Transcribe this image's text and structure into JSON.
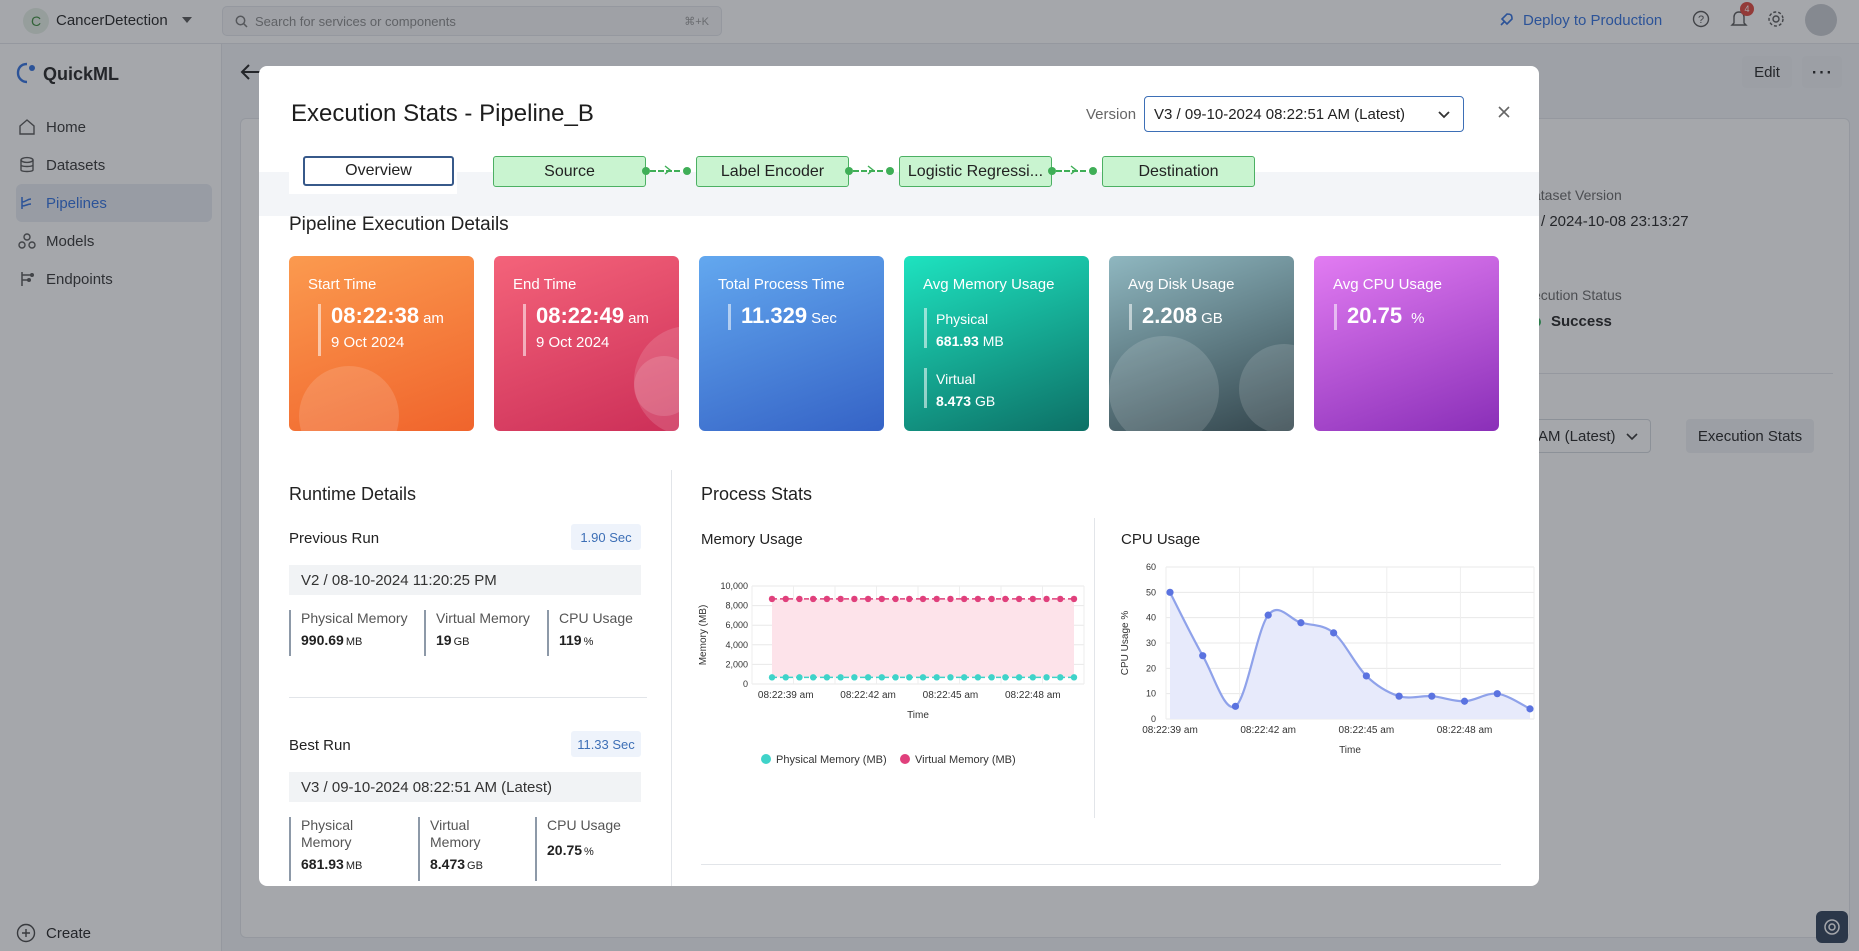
{
  "topbar": {
    "project_initial": "C",
    "project_name": "CancerDetection",
    "search_placeholder": "Search for services or components",
    "search_shortcut": "⌘+K",
    "deploy_label": "Deploy to Production",
    "notification_count": "4",
    "colors": {
      "accent": "#2f6fde",
      "badge": "#e0443a"
    }
  },
  "sidebar": {
    "brand": "QuickML",
    "items": [
      {
        "label": "Home",
        "icon": "home-icon"
      },
      {
        "label": "Datasets",
        "icon": "database-icon"
      },
      {
        "label": "Pipelines",
        "icon": "pipeline-icon",
        "active": true
      },
      {
        "label": "Models",
        "icon": "models-icon"
      },
      {
        "label": "Endpoints",
        "icon": "endpoints-icon"
      }
    ],
    "create_label": "Create"
  },
  "background_page": {
    "edit_label": "Edit",
    "dataset_version_label": "ataset Version",
    "dataset_version_value": "/ 2024-10-08 23:13:27",
    "execution_status_label": "ecution Status",
    "execution_status_value": "Success",
    "version_select_value": "AM (Latest)",
    "execution_stats_button": "Execution Stats"
  },
  "modal": {
    "title": "Execution Stats - Pipeline_B",
    "version_label": "Version",
    "version_value": "V3 / 09-10-2024 08:22:51 AM (Latest)",
    "tabs": {
      "overview": "Overview",
      "stages": [
        "Source",
        "Label Encoder",
        "Logistic Regressi...",
        "Destination"
      ]
    },
    "section_title": "Pipeline Execution Details",
    "cards": {
      "start": {
        "title": "Start Time",
        "time": "08:22:38",
        "ampm": "am",
        "date": "9 Oct 2024",
        "color_from": "#fb9a4f",
        "color_to": "#f0642c"
      },
      "end": {
        "title": "End Time",
        "time": "08:22:49",
        "ampm": "am",
        "date": "9 Oct 2024",
        "color_from": "#f4637a",
        "color_to": "#cc2f58"
      },
      "total": {
        "title": "Total Process Time",
        "value": "11.329",
        "unit": "Sec",
        "color_from": "#63a8ef",
        "color_to": "#3563c6"
      },
      "memory": {
        "title": "Avg Memory Usage",
        "physical_label": "Physical",
        "physical_value": "681.93",
        "physical_unit": "MB",
        "virtual_label": "Virtual",
        "virtual_value": "8.473",
        "virtual_unit": "GB",
        "color_from": "#1ee3c0",
        "color_to": "#0d7066"
      },
      "disk": {
        "title": "Avg Disk Usage",
        "value": "2.208",
        "unit": "GB",
        "color_from": "#8fb7c0",
        "color_to": "#33454c"
      },
      "cpu": {
        "title": "Avg CPU Usage",
        "value": "20.75",
        "unit": "%",
        "color_from": "#e27cf2",
        "color_to": "#8a2fb8"
      }
    },
    "runtime": {
      "title": "Runtime Details",
      "previous": {
        "label": "Previous Run",
        "badge": "1.90 Sec",
        "version": "V2 / 08-10-2024 11:20:25 PM",
        "physical_label": "Physical Memory",
        "physical_value": "990.69",
        "physical_unit": "MB",
        "virtual_label": "Virtual Memory",
        "virtual_value": "19",
        "virtual_unit": "GB",
        "cpu_label": "CPU Usage",
        "cpu_value": "119",
        "cpu_unit": "%"
      },
      "best": {
        "label": "Best Run",
        "badge": "11.33 Sec",
        "version": "V3 / 09-10-2024 08:22:51 AM (Latest)",
        "physical_label_1": "Physical",
        "physical_label_2": "Memory",
        "physical_value": "681.93",
        "physical_unit": "MB",
        "virtual_label_1": "Virtual",
        "virtual_label_2": "Memory",
        "virtual_value": "8.473",
        "virtual_unit": "GB",
        "cpu_label": "CPU Usage",
        "cpu_value": "20.75",
        "cpu_unit": "%"
      }
    },
    "process_stats_title": "Process Stats"
  },
  "chart_data": [
    {
      "type": "line",
      "title": "Memory Usage",
      "xlabel": "Time",
      "ylabel": "Memory (MB)",
      "ylim": [
        0,
        10000
      ],
      "yticks": [
        "0",
        "2,000",
        "4,000",
        "6,000",
        "8,000",
        "10,000"
      ],
      "xticks": [
        "08:22:39 am",
        "08:22:42 am",
        "08:22:45 am",
        "08:22:48 am"
      ],
      "point_count": 23,
      "series": [
        {
          "name": "Physical Memory (MB)",
          "color": "#3fd3c9",
          "values": [
            680,
            681,
            681,
            682,
            682,
            682,
            682,
            682,
            682,
            682,
            682,
            682,
            682,
            682,
            682,
            682,
            682,
            682,
            682,
            682,
            682,
            682,
            682
          ]
        },
        {
          "name": "Virtual Memory (MB)",
          "color": "#e0407c",
          "fill": "#fde3ea",
          "values": [
            8680,
            8680,
            8680,
            8680,
            8680,
            8680,
            8680,
            8680,
            8680,
            8680,
            8680,
            8680,
            8680,
            8680,
            8680,
            8680,
            8680,
            8680,
            8680,
            8680,
            8680,
            8680,
            8680
          ]
        }
      ],
      "legend": "bottom",
      "grid": true
    },
    {
      "type": "area",
      "title": "CPU Usage",
      "xlabel": "Time",
      "ylabel": "CPU Usage %",
      "ylim": [
        0,
        60
      ],
      "yticks": [
        "0",
        "10",
        "20",
        "30",
        "40",
        "50",
        "60"
      ],
      "xticks": [
        "08:22:39 am",
        "08:22:42 am",
        "08:22:45 am",
        "08:22:48 am"
      ],
      "series": [
        {
          "name": "",
          "color": "#5b73e0",
          "fill": "#e7eafb",
          "values": [
            50,
            25,
            5,
            41,
            38,
            34,
            17,
            9,
            9,
            7,
            10,
            4
          ]
        }
      ],
      "grid": true
    }
  ]
}
